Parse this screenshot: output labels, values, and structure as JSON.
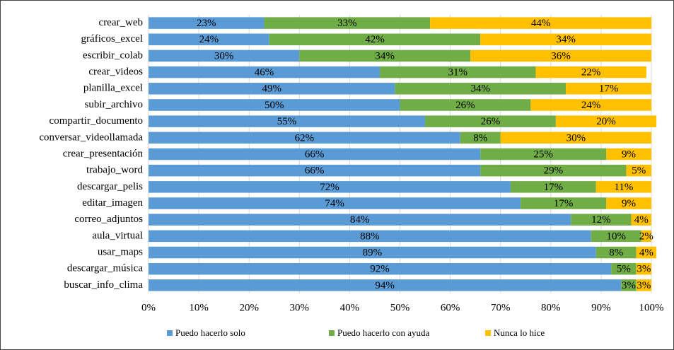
{
  "chart_data": {
    "type": "stacked_barh",
    "categories": [
      "crear_web",
      "gráficos_excel",
      "escribir_colab",
      "crear_videos",
      "planilla_excel",
      "subir_archivo",
      "compartir_documento",
      "conversar_videollamada",
      "crear_presentación",
      "trabajo_word",
      "descargar_pelis",
      "editar_imagen",
      "correo_adjuntos",
      "aula_virtual",
      "usar_maps",
      "descargar_música",
      "buscar_info_clima"
    ],
    "series": [
      {
        "name": "Puedo hacerlo solo",
        "color": "#5b9bd5",
        "values": [
          23,
          24,
          30,
          46,
          49,
          50,
          55,
          62,
          66,
          66,
          72,
          74,
          84,
          88,
          89,
          92,
          94
        ],
        "value_labels": [
          "23%",
          "24%",
          "30%",
          "46%",
          "49%",
          "50%",
          "55%",
          "62%",
          "66%",
          "66%",
          "72%",
          "74%",
          "84%",
          "88%",
          "89%",
          "92%",
          "94%"
        ]
      },
      {
        "name": "Puedo hacerlo con ayuda",
        "color": "#70ad47",
        "values": [
          33,
          42,
          34,
          31,
          34,
          26,
          26,
          8,
          25,
          29,
          17,
          17,
          12,
          10,
          8,
          5,
          3
        ],
        "value_labels": [
          "33%",
          "42%",
          "34%",
          "31%",
          "34%",
          "26%",
          "26%",
          "8%",
          "25%",
          "29%",
          "17%",
          "17%",
          "12%",
          "10%",
          "8%",
          "5%",
          "3%"
        ]
      },
      {
        "name": "Nunca lo hice",
        "color": "#ffc000",
        "values": [
          44,
          34,
          36,
          22,
          17,
          24,
          20,
          30,
          9,
          5,
          11,
          9,
          4,
          2,
          4,
          3,
          3
        ],
        "value_labels": [
          "44%",
          "34%",
          "36%",
          "22%",
          "17%",
          "24%",
          "20%",
          "30%",
          "9%",
          "5%",
          "11%",
          "9%",
          "4%",
          "2%",
          "4%",
          "3%",
          "3%"
        ]
      }
    ],
    "xlim": [
      0,
      100
    ],
    "xticks": [
      {
        "value": 0,
        "label": "0%"
      },
      {
        "value": 10,
        "label": "10%"
      },
      {
        "value": 20,
        "label": "20%"
      },
      {
        "value": 30,
        "label": "30%"
      },
      {
        "value": 40,
        "label": "40%"
      },
      {
        "value": 50,
        "label": "50%"
      },
      {
        "value": 60,
        "label": "60%"
      },
      {
        "value": 70,
        "label": "70%"
      },
      {
        "value": 80,
        "label": "80%"
      },
      {
        "value": 90,
        "label": "90%"
      },
      {
        "value": 100,
        "label": "100%"
      }
    ],
    "legend": "bottom"
  }
}
